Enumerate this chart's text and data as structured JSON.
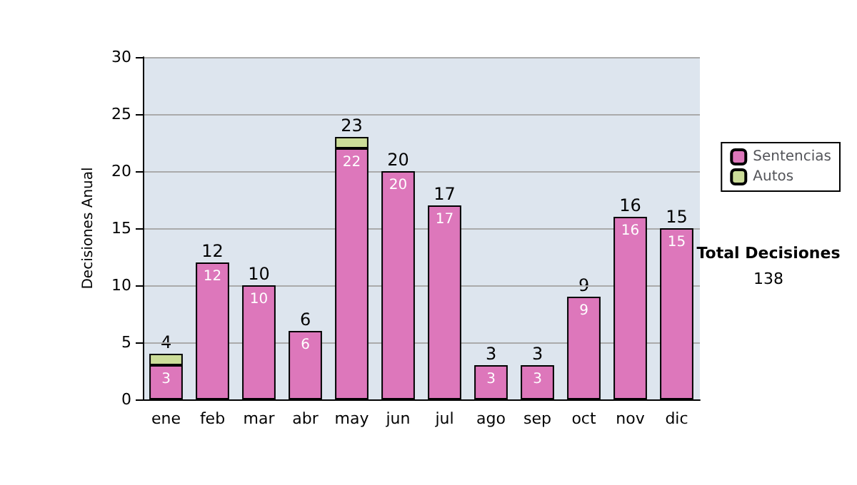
{
  "chart_data": {
    "type": "bar",
    "ylabel": "Decisiones Anual",
    "categories": [
      "ene",
      "feb",
      "mar",
      "abr",
      "may",
      "jun",
      "jul",
      "ago",
      "sep",
      "oct",
      "nov",
      "dic"
    ],
    "stacked": true,
    "series": [
      {
        "name": "Sentencias",
        "color": "#dd77bb",
        "values": [
          3,
          12,
          10,
          6,
          22,
          20,
          17,
          3,
          3,
          9,
          16,
          15
        ],
        "value_labels": [
          "3",
          "12",
          "10",
          "6",
          "22",
          "20",
          "17",
          "3",
          "3",
          "9",
          "16",
          "15"
        ]
      },
      {
        "name": "Autos",
        "color": "#ccdd99",
        "values": [
          1,
          null,
          null,
          null,
          1,
          null,
          null,
          null,
          null,
          null,
          null,
          null
        ]
      }
    ],
    "totals": [
      "4",
      "12",
      "10",
      "6",
      "23",
      "20",
      "17",
      "3",
      "3",
      "9",
      "16",
      "15"
    ],
    "ylim": [
      0,
      30
    ],
    "yticks": [
      0,
      5,
      10,
      15,
      20,
      25,
      30
    ],
    "grid": "y",
    "legend": "right",
    "annotations": [
      "Total Decisiones",
      "138"
    ]
  }
}
